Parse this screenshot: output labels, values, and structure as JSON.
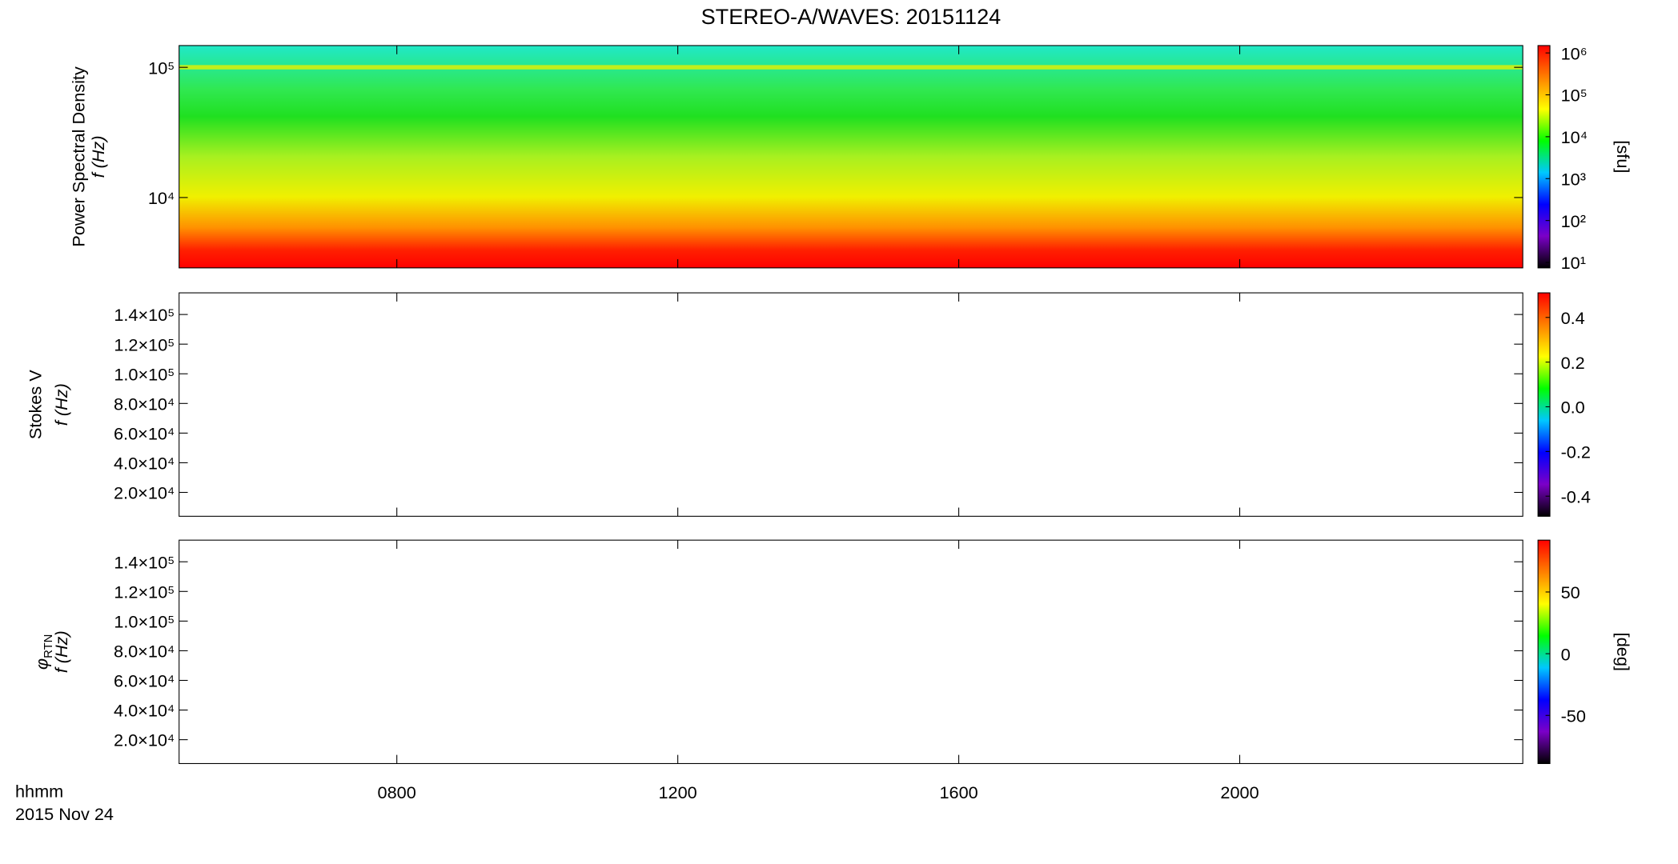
{
  "chart_data": {
    "type": "spectrogram",
    "title": "STEREO-A/WAVES: 20151124",
    "xlabel": "hhmm",
    "date_label": "2015 Nov 24",
    "xlim": [
      4.9,
      24.03
    ],
    "xticks": [
      {
        "value": 8,
        "label": "0800"
      },
      {
        "value": 12,
        "label": "1200"
      },
      {
        "value": 16,
        "label": "1600"
      },
      {
        "value": 20,
        "label": "2000"
      }
    ],
    "colormap": [
      "#000000",
      "#7b00c8",
      "#0000ff",
      "#00c8ff",
      "#00ff00",
      "#ffff00",
      "#ff8000",
      "#ff0000"
    ],
    "panels": [
      {
        "ylabel": "Power Spectral Density",
        "ylabel2": "f (Hz)",
        "ylog": true,
        "ylim": [
          2880,
          147000
        ],
        "yticks": [
          {
            "value": 10000,
            "label": "10⁴"
          },
          {
            "value": 100000,
            "label": "10⁵"
          }
        ],
        "clim": [
          7.4,
          1500000
        ],
        "clog": true,
        "cticks": [
          {
            "value": 10,
            "label": "10¹"
          },
          {
            "value": 100,
            "label": "10²"
          },
          {
            "value": 1000,
            "label": "10³"
          },
          {
            "value": 10000,
            "label": "10⁴"
          },
          {
            "value": 100000,
            "label": "10⁵"
          },
          {
            "value": 1000000,
            "label": "10⁶"
          }
        ],
        "clabel": "[sfu]",
        "filled": true
      },
      {
        "ylabel": "Stokes V",
        "ylabel2": "f (Hz)",
        "ylog": false,
        "ylim": [
          3900,
          154600
        ],
        "yticks": [
          {
            "value": 20000,
            "label": "2.0×10⁴"
          },
          {
            "value": 40000,
            "label": "4.0×10⁴"
          },
          {
            "value": 60000,
            "label": "6.0×10⁴"
          },
          {
            "value": 80000,
            "label": "8.0×10⁴"
          },
          {
            "value": 100000,
            "label": "1.0×10⁵"
          },
          {
            "value": 120000,
            "label": "1.2×10⁵"
          },
          {
            "value": 140000,
            "label": "1.4×10⁵"
          }
        ],
        "clim": [
          -0.49,
          0.51
        ],
        "clog": false,
        "cticks": [
          -0.4,
          -0.2,
          {
            "value": 0,
            "label": "0.0"
          },
          0.2,
          0.4
        ],
        "filled": false
      },
      {
        "ylabel_symbol": "φ",
        "ylabel_subscript": "RTN",
        "ylabel2": "f (Hz)",
        "ylog": false,
        "ylim": [
          3900,
          154600
        ],
        "yticks": [
          {
            "value": 20000,
            "label": "2.0×10⁴"
          },
          {
            "value": 40000,
            "label": "4.0×10⁴"
          },
          {
            "value": 60000,
            "label": "6.0×10⁴"
          },
          {
            "value": 80000,
            "label": "8.0×10⁴"
          },
          {
            "value": 100000,
            "label": "1.0×10⁵"
          },
          {
            "value": 120000,
            "label": "1.2×10⁵"
          },
          {
            "value": 140000,
            "label": "1.4×10⁵"
          }
        ],
        "clim": [
          -89,
          92
        ],
        "clog": false,
        "cticks": [
          -50,
          0,
          50
        ],
        "clabel": "[deg]",
        "filled": false
      }
    ]
  }
}
